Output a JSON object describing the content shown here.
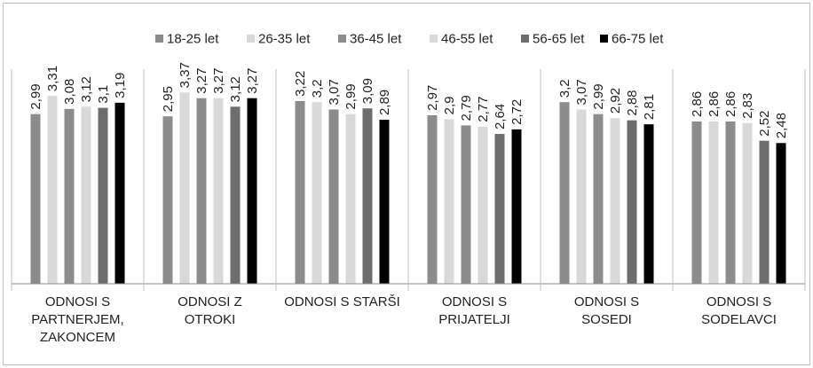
{
  "chart_data": {
    "type": "bar",
    "title": "",
    "xlabel": "",
    "ylabel": "",
    "ylim": [
      0,
      4
    ],
    "grid": false,
    "legend_position": "top",
    "categories": [
      "ODNOSI S PARTNERJEM, ZAKONCEM",
      "ODNOSI Z OTROKI",
      "ODNOSI S STARŠI",
      "ODNOSI S PRIJATELJI",
      "ODNOSI S SOSEDI",
      "ODNOSI S SODELAVCI"
    ],
    "category_lines": [
      [
        "ODNOSI S",
        "PARTNERJEM,",
        "ZAKONCEM"
      ],
      [
        "ODNOSI Z",
        "OTROKI"
      ],
      [
        "ODNOSI S STARŠI"
      ],
      [
        "ODNOSI S",
        "PRIJATELJI"
      ],
      [
        "ODNOSI S",
        "SOSEDI"
      ],
      [
        "ODNOSI S",
        "SODELAVCI"
      ]
    ],
    "series": [
      {
        "name": "18-25 let",
        "color": "#8c8c8c",
        "values": [
          2.99,
          2.95,
          3.22,
          2.97,
          3.2,
          2.86
        ],
        "labels": [
          "2,99",
          "2,95",
          "3,22",
          "2,97",
          "3,2",
          "2,86"
        ]
      },
      {
        "name": "26-35 let",
        "color": "#d9d9d9",
        "values": [
          3.31,
          3.37,
          3.2,
          2.9,
          3.07,
          2.86
        ],
        "labels": [
          "3,31",
          "3,37",
          "3,2",
          "2,9",
          "3,07",
          "2,86"
        ]
      },
      {
        "name": "36-45 let",
        "color": "#8c8c8c",
        "values": [
          3.08,
          3.27,
          3.07,
          2.79,
          2.99,
          2.86
        ],
        "labels": [
          "3,08",
          "3,27",
          "3,07",
          "2,79",
          "2,99",
          "2,86"
        ]
      },
      {
        "name": "46-55 let",
        "color": "#d9d9d9",
        "values": [
          3.12,
          3.27,
          2.99,
          2.77,
          2.92,
          2.83
        ],
        "labels": [
          "3,12",
          "3,27",
          "2,99",
          "2,77",
          "2,92",
          "2,83"
        ]
      },
      {
        "name": "56-65 let",
        "color": "#6e6e6e",
        "values": [
          3.1,
          3.12,
          3.09,
          2.64,
          2.88,
          2.52
        ],
        "labels": [
          "3,1",
          "3,12",
          "3,09",
          "2,64",
          "2,88",
          "2,52"
        ]
      },
      {
        "name": "66-75 let",
        "color": "#000000",
        "values": [
          3.19,
          3.27,
          2.89,
          2.72,
          2.81,
          2.48
        ],
        "labels": [
          "3,19",
          "3,27",
          "2,89",
          "2,72",
          "2,81",
          "2,48"
        ]
      }
    ],
    "colors": {
      "frame": "#bfbfbf",
      "axis": "#8c8c8c",
      "text": "#222222"
    }
  }
}
